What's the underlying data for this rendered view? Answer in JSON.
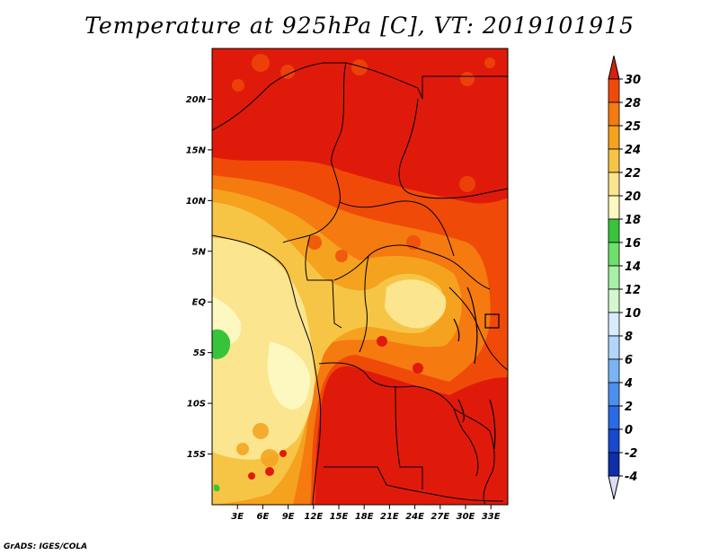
{
  "title": "Temperature at 925hPa [C], VT: 2019101915",
  "credit": "GrADS: IGES/COLA",
  "map": {
    "lat_labels": [
      "20N",
      "15N",
      "10N",
      "5N",
      "EQ",
      "5S",
      "10S",
      "15S"
    ],
    "lat_values": [
      20,
      15,
      10,
      5,
      0,
      -5,
      -10,
      -15
    ],
    "lon_labels": [
      "3E",
      "6E",
      "9E",
      "12E",
      "15E",
      "18E",
      "21E",
      "24E",
      "27E",
      "30E",
      "33E"
    ],
    "lon_values": [
      3,
      6,
      9,
      12,
      15,
      18,
      21,
      24,
      27,
      30,
      33
    ],
    "lon_range": [
      0,
      35
    ],
    "lat_range": [
      -20,
      25
    ]
  },
  "colorbar": {
    "labels": [
      "30",
      "28",
      "25",
      "24",
      "22",
      "20",
      "18",
      "16",
      "14",
      "12",
      "10",
      "8",
      "6",
      "4",
      "2",
      "0",
      "-2",
      "-4"
    ],
    "colors": [
      "#e01a0a",
      "#f04a08",
      "#f57a10",
      "#f5a21e",
      "#f7c546",
      "#fbe58e",
      "#fdf7c0",
      "#37c43b",
      "#6fe06d",
      "#a7f0a5",
      "#d4f7cf",
      "#d9ecfd",
      "#b0d6fb",
      "#7ab4f5",
      "#4d8fef",
      "#2a6ae4",
      "#1849cf",
      "#0d2fa8",
      "#081878"
    ],
    "top_arrow_color": "#d6210e",
    "bottom_arrow_color": "#dcdcf8"
  },
  "palette": {
    "hot": "#e01a0a",
    "warm": "#f04a08",
    "orange": "#f57a10",
    "amber": "#f5a21e",
    "yellow": "#f7c546",
    "pale": "#fbe58e",
    "cream": "#fdf7c0",
    "green": "#37c43b"
  }
}
